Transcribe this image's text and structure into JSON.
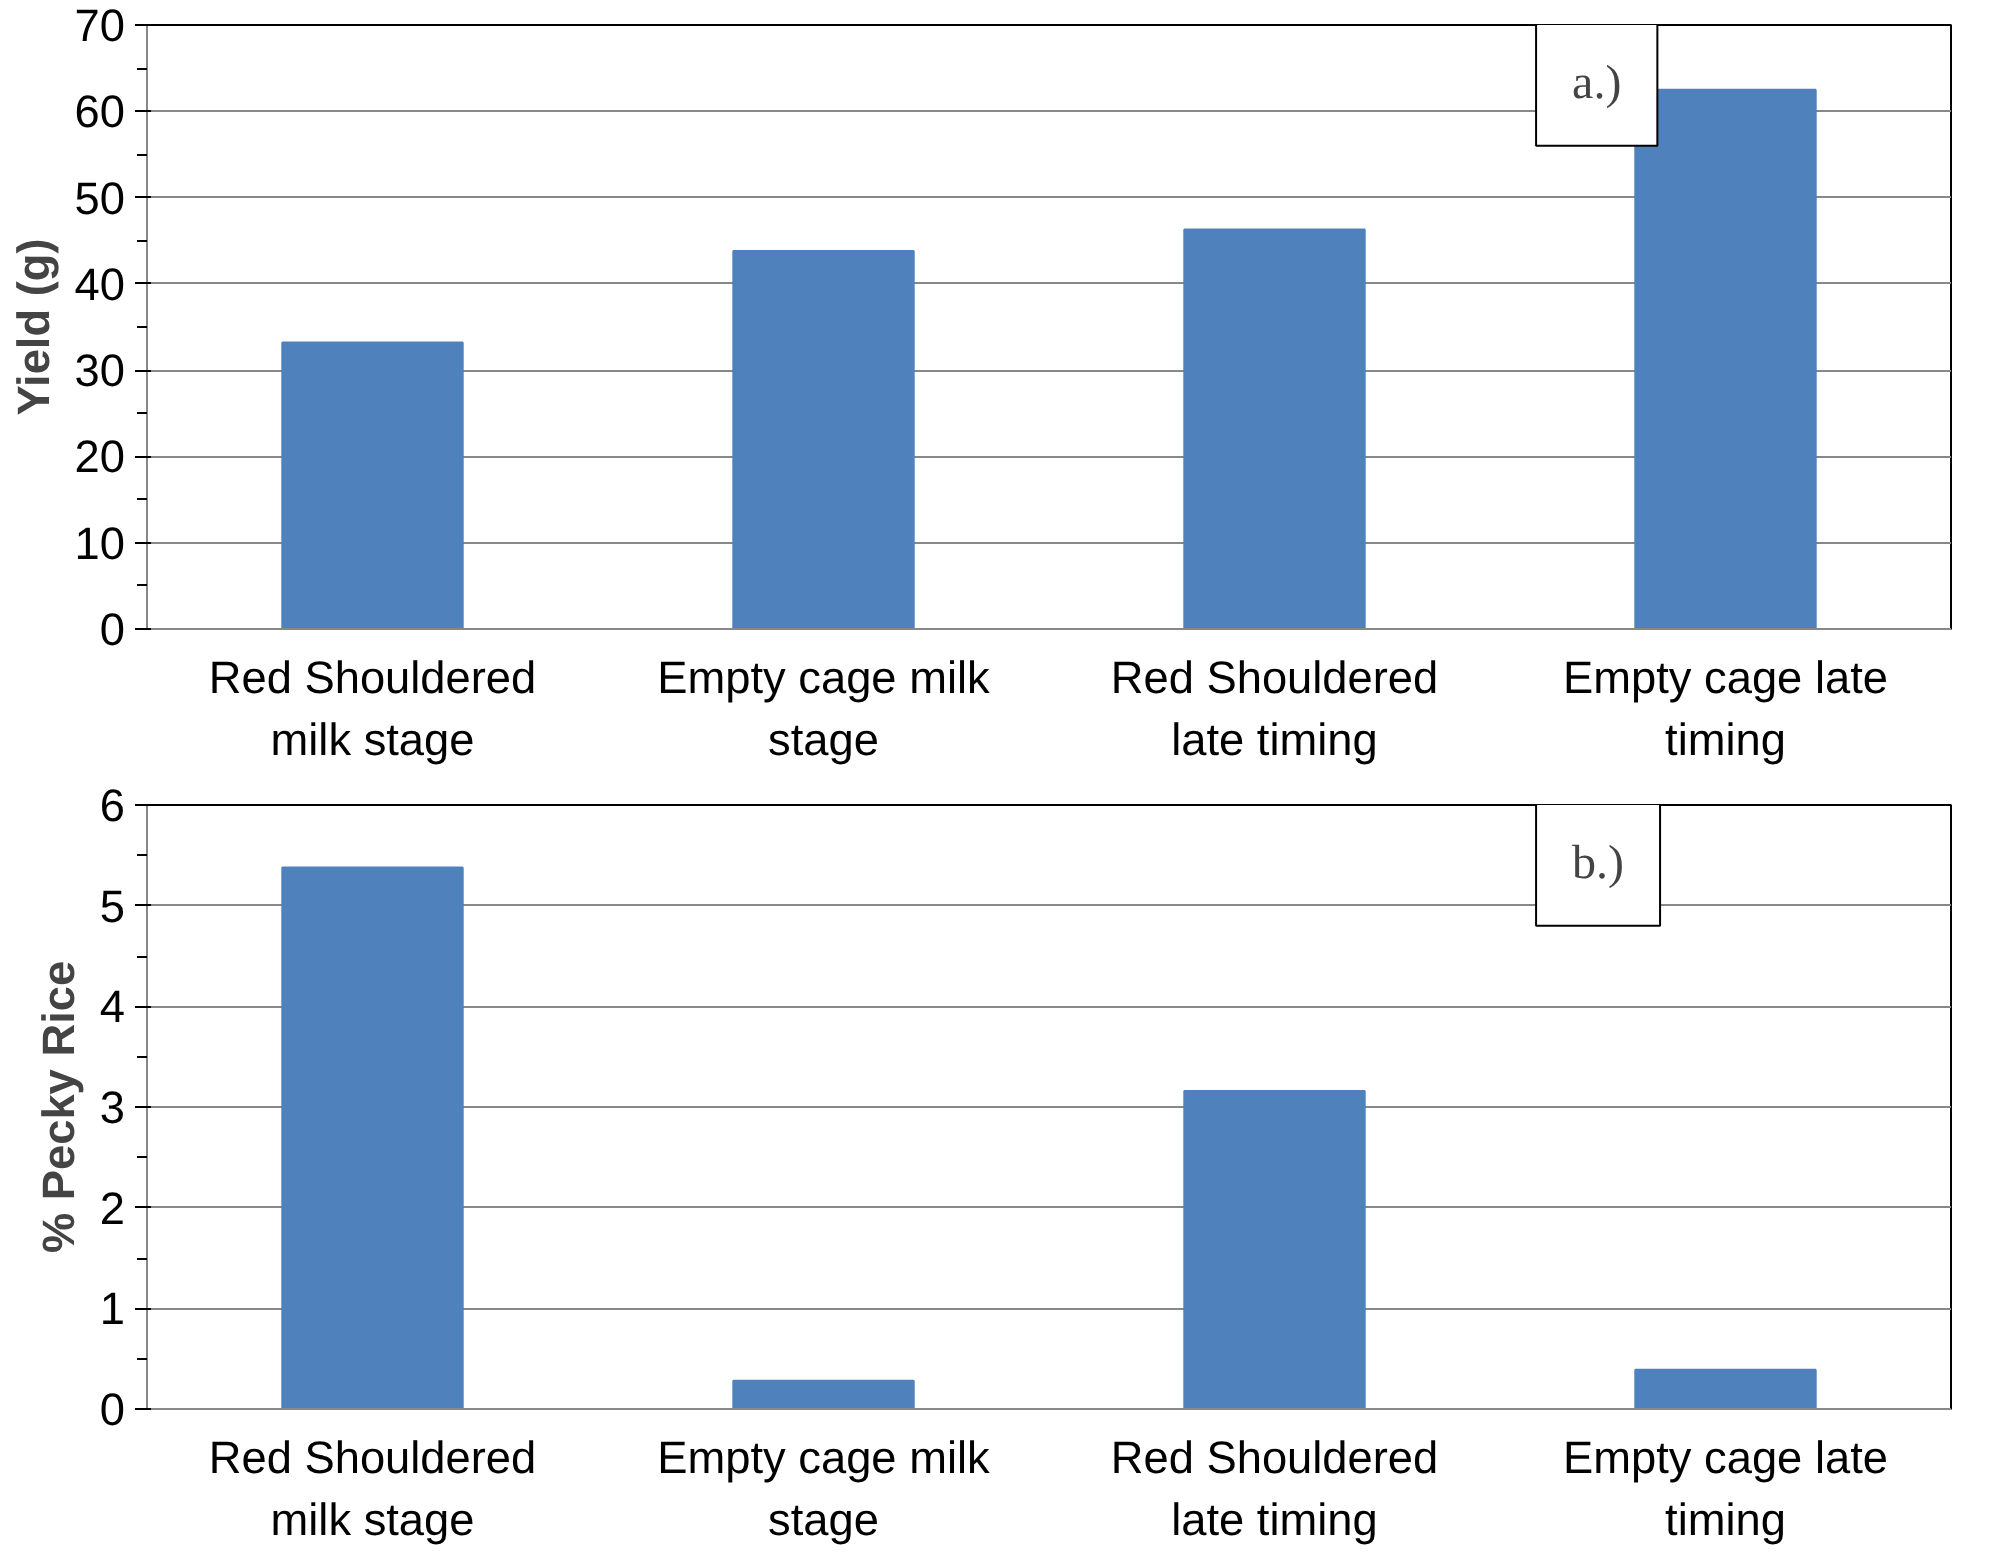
{
  "chart_data": [
    {
      "type": "bar",
      "ylabel": "Yield (g)",
      "categories": [
        "Red Shouldered milk stage",
        "Empty cage milk stage",
        "Red Shouldered late timing",
        "Empty cage late timing"
      ],
      "values": [
        33.2,
        43.8,
        46.3,
        62.5
      ],
      "color": "#4f81bd",
      "ylim": [
        0,
        70
      ],
      "yticks": [
        0,
        10,
        20,
        30,
        40,
        50,
        60,
        70
      ],
      "grid": "y",
      "annotations": [
        "a.)"
      ]
    },
    {
      "type": "bar",
      "ylabel": "% Pecky Rice",
      "categories": [
        "Red Shouldered milk stage",
        "Empty cage milk stage",
        "Red Shouldered late timing",
        "Empty cage late timing"
      ],
      "values": [
        5.38,
        0.28,
        3.16,
        0.39
      ],
      "color": "#4f81bd",
      "ylim": [
        0,
        6
      ],
      "yticks": [
        0,
        1,
        2,
        3,
        4,
        5,
        6
      ],
      "grid": "y",
      "annotations": [
        "b.)"
      ]
    }
  ]
}
